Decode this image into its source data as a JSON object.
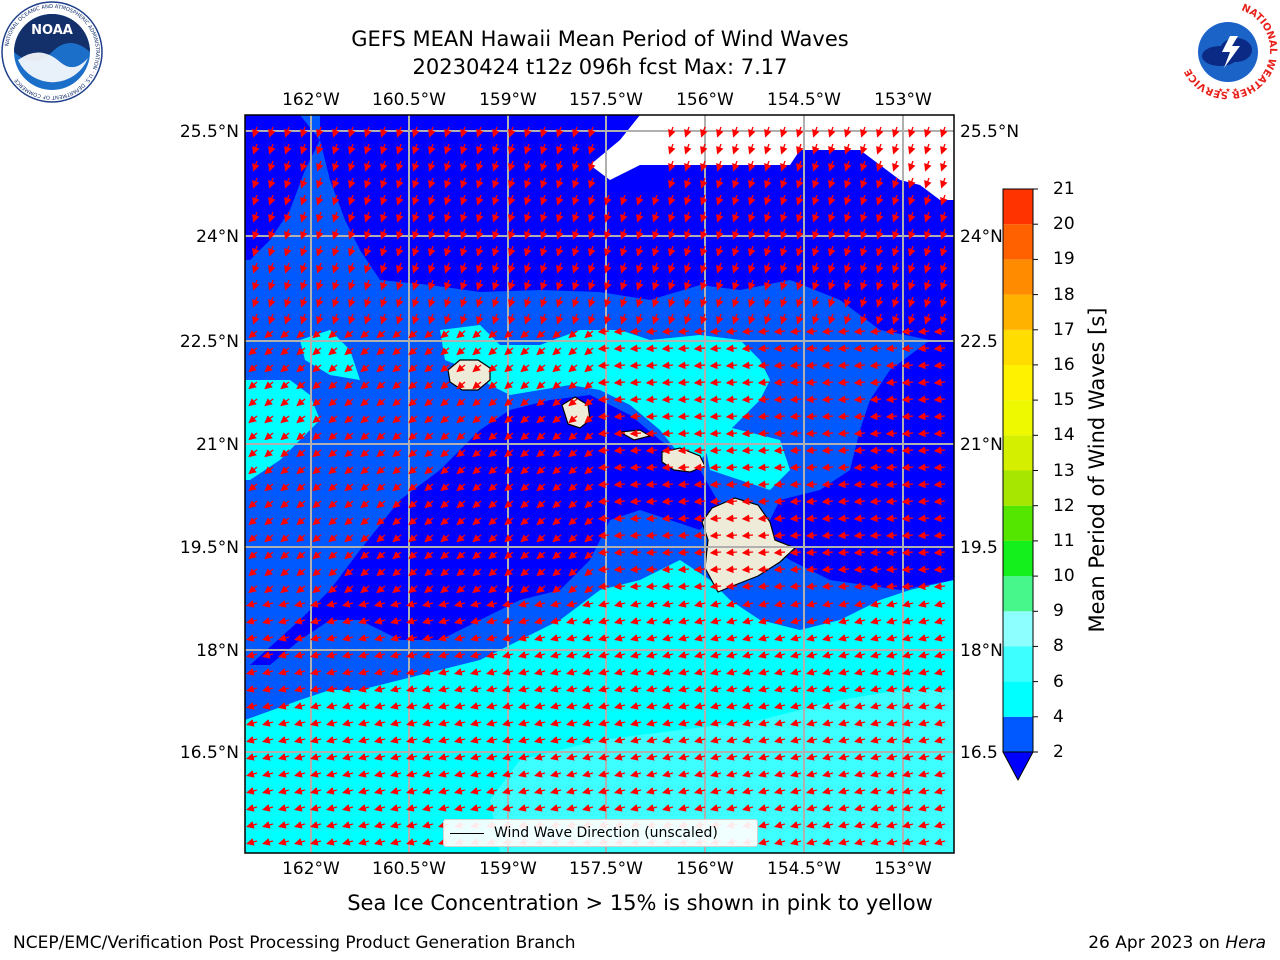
{
  "title": {
    "line1": "GEFS MEAN Hawaii Mean Period of Wind Waves",
    "line2": "20230424 t12z 096h fcst   Max: 7.17"
  },
  "map": {
    "lon_labels": [
      "162°W",
      "160.5°W",
      "159°W",
      "157.5°W",
      "156°W",
      "154.5°W",
      "153°W"
    ],
    "lat_labels": [
      "25.5°N",
      "24°N",
      "22.5°N",
      "21°N",
      "19.5°N",
      "18°N",
      "16.5°N"
    ],
    "lat_labels_right": [
      "25.5°N",
      "24°N",
      "22.5",
      "21°N",
      "19.5",
      "18°N",
      "16.5"
    ],
    "legend_label": "Wind Wave Direction (unscaled)",
    "arrow_color": "#ff0000",
    "land_color": "#efebd9"
  },
  "colorbar": {
    "label": "Mean Period of Wind Waves [s]",
    "ticks": [
      "2",
      "4",
      "6",
      "8",
      "9",
      "10",
      "11",
      "12",
      "13",
      "14",
      "15",
      "16",
      "17",
      "18",
      "19",
      "20",
      "21"
    ],
    "colors": [
      "#0059ff",
      "#00ffff",
      "#3dffff",
      "#8effff",
      "#48f78c",
      "#14f01c",
      "#55e600",
      "#a6e600",
      "#d4ef00",
      "#eef900",
      "#fff200",
      "#ffdd00",
      "#ffb300",
      "#ff8c00",
      "#ff6000",
      "#ff3300",
      "#ff0000"
    ],
    "under_color": "#0000ff"
  },
  "footer": {
    "subtitle": "Sea Ice Concentration > 15% is shown in pink to yellow",
    "left": "NCEP/EMC/Verification Post Processing Product Generation Branch",
    "right_prefix": "26 Apr 2023 on ",
    "right_italic": "Hera"
  },
  "logos": {
    "noaa": "NOAA",
    "noaa_ring": "NATIONAL OCEANIC AND ATMOSPHERIC ADMINISTRATION · U.S. DEPARTMENT OF COMMERCE",
    "nws_ring": "NATIONAL WEATHER SERVICE"
  }
}
